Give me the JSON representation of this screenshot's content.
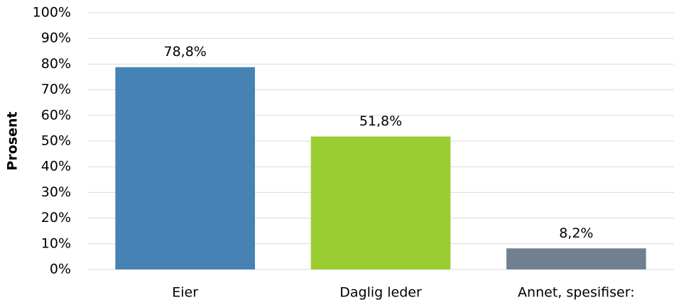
{
  "chart_data": {
    "type": "bar",
    "ylabel": "Prosent",
    "categories": [
      "Eier",
      "Daglig leder",
      "Annet, spesifiser:"
    ],
    "values": [
      78.8,
      51.8,
      8.2
    ],
    "value_labels": [
      "78,8%",
      "51,8%",
      "8,2%"
    ],
    "colors": [
      "#4682b4",
      "#9acd32",
      "#708090"
    ],
    "ylim": [
      0,
      100
    ],
    "yticks": [
      {
        "value": 0,
        "label": "0%"
      },
      {
        "value": 10,
        "label": "10%"
      },
      {
        "value": 20,
        "label": "20%"
      },
      {
        "value": 30,
        "label": "30%"
      },
      {
        "value": 40,
        "label": "40%"
      },
      {
        "value": 50,
        "label": "50%"
      },
      {
        "value": 60,
        "label": "60%"
      },
      {
        "value": 70,
        "label": "70%"
      },
      {
        "value": 80,
        "label": "80%"
      },
      {
        "value": 90,
        "label": "90%"
      },
      {
        "value": 100,
        "label": "100%"
      }
    ],
    "grid": true
  }
}
